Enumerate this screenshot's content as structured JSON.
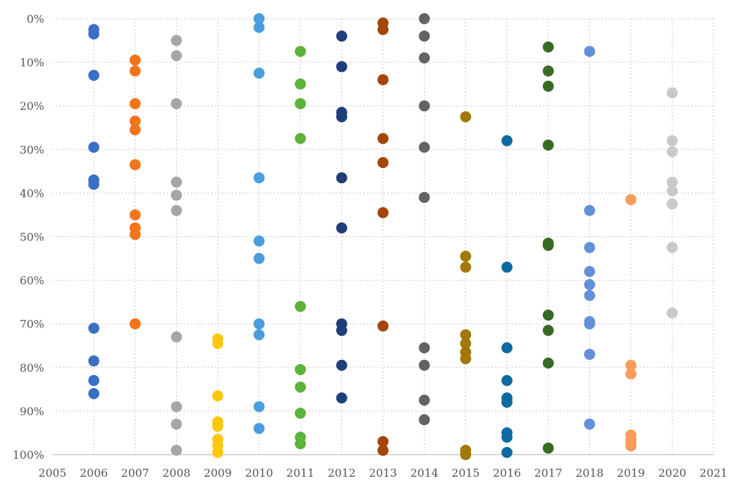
{
  "chart_data": {
    "type": "scatter",
    "title": "",
    "xlabel": "",
    "ylabel": "",
    "xlim": [
      2005,
      2021
    ],
    "ylim": [
      0,
      100
    ],
    "y_axis_inverted": true,
    "grid": true,
    "legend": "none",
    "x_ticks": [
      "2005",
      "2006",
      "2007",
      "2008",
      "2009",
      "2010",
      "2011",
      "2012",
      "2013",
      "2014",
      "2015",
      "2016",
      "2017",
      "2018",
      "2019",
      "2020",
      "2021"
    ],
    "y_ticks": [
      "0%",
      "10%",
      "20%",
      "30%",
      "40%",
      "50%",
      "60%",
      "70%",
      "80%",
      "90%",
      "100%"
    ],
    "series": [
      {
        "x": 2006,
        "color": "#3a6fc4",
        "values": [
          2.5,
          3.5,
          13,
          29.5,
          37,
          38,
          71,
          78.5,
          83,
          86
        ]
      },
      {
        "x": 2007,
        "color": "#f5741a",
        "values": [
          9.5,
          12,
          19.5,
          23.5,
          25.5,
          33.5,
          45,
          48,
          49.5,
          70
        ]
      },
      {
        "x": 2008,
        "color": "#a6a6a6",
        "values": [
          5,
          8.5,
          19.5,
          37.5,
          40.5,
          44,
          73,
          89,
          93,
          99
        ]
      },
      {
        "x": 2009,
        "color": "#fec70b",
        "values": [
          73.5,
          74.5,
          86.5,
          92.5,
          93.5,
          96.5,
          98,
          99.5
        ]
      },
      {
        "x": 2010,
        "color": "#4a9ede",
        "values": [
          0,
          2,
          12.5,
          36.5,
          51,
          55,
          70,
          72.5,
          89,
          94
        ]
      },
      {
        "x": 2011,
        "color": "#5db23a",
        "values": [
          7.5,
          15,
          19.5,
          27.5,
          66,
          80.5,
          84.5,
          90.5,
          96,
          97.5
        ]
      },
      {
        "x": 2012,
        "color": "#1f3f7a",
        "values": [
          4,
          11,
          21.5,
          22.5,
          36.5,
          48,
          70,
          71.5,
          79.5,
          87
        ]
      },
      {
        "x": 2013,
        "color": "#a44509",
        "values": [
          1,
          2.5,
          14,
          27.5,
          33,
          44.5,
          70.5,
          97,
          99
        ]
      },
      {
        "x": 2014,
        "color": "#636363",
        "values": [
          0,
          4,
          9,
          20,
          29.5,
          41,
          75.5,
          79.5,
          87.5,
          92
        ]
      },
      {
        "x": 2015,
        "color": "#a27906",
        "values": [
          22.5,
          54.5,
          57,
          72.5,
          74.5,
          76.5,
          78,
          99,
          100
        ]
      },
      {
        "x": 2016,
        "color": "#0d6aa3",
        "values": [
          28,
          57,
          75.5,
          83,
          87,
          88,
          95,
          96,
          99.5
        ]
      },
      {
        "x": 2017,
        "color": "#386a23",
        "values": [
          6.5,
          12,
          15.5,
          29,
          51.5,
          52,
          68,
          71.5,
          79,
          98.5
        ]
      },
      {
        "x": 2018,
        "color": "#6390d9",
        "values": [
          7.5,
          44,
          52.5,
          58,
          61,
          63.5,
          69.5,
          70,
          77,
          93
        ]
      },
      {
        "x": 2019,
        "color": "#fc9c59",
        "values": [
          41.5,
          79.5,
          81.5,
          95.5,
          96.5,
          97,
          98
        ]
      },
      {
        "x": 2020,
        "color": "#c9c9c9",
        "values": [
          17,
          28,
          30.5,
          37.5,
          39.5,
          42.5,
          52.5,
          67.5
        ]
      }
    ]
  }
}
